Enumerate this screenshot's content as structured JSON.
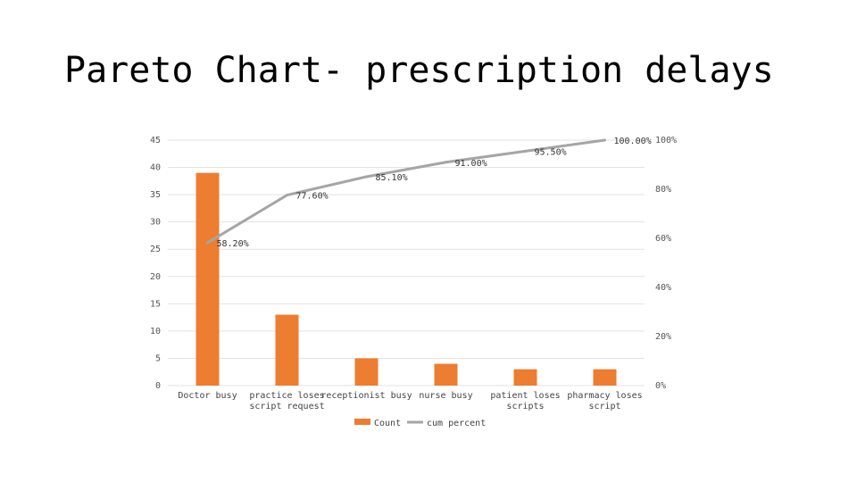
{
  "slide": {
    "title": "Pareto Chart- prescription delays"
  },
  "chart_data": {
    "type": "bar",
    "title": "",
    "categories": [
      [
        "Doctor busy"
      ],
      [
        "practice loses",
        "script request"
      ],
      [
        "receptionist busy"
      ],
      [
        "nurse busy"
      ],
      [
        "patient loses",
        "scripts"
      ],
      [
        "pharmacy loses",
        "script"
      ]
    ],
    "series": [
      {
        "name": "Count",
        "type": "bar",
        "axis": "left",
        "color": "#ed7d31",
        "values": [
          39,
          13,
          5,
          4,
          3,
          3
        ]
      },
      {
        "name": "cum percent",
        "type": "line",
        "axis": "right",
        "color": "#a5a5a5",
        "values": [
          58.2,
          77.6,
          85.1,
          91.0,
          95.5,
          100.0
        ],
        "labels": [
          "58.20%",
          "77.60%",
          "85.10%",
          "91.00%",
          "95.50%",
          "100.00%"
        ]
      }
    ],
    "y_left": {
      "ylim": [
        0,
        45
      ],
      "ticks": [
        "0",
        "5",
        "10",
        "15",
        "20",
        "25",
        "30",
        "35",
        "40",
        "45"
      ]
    },
    "y_right": {
      "ylim": [
        0,
        100
      ],
      "ticks": [
        "0%",
        "20%",
        "40%",
        "60%",
        "80%",
        "100%"
      ]
    },
    "grid": true,
    "legend_position": "bottom"
  }
}
